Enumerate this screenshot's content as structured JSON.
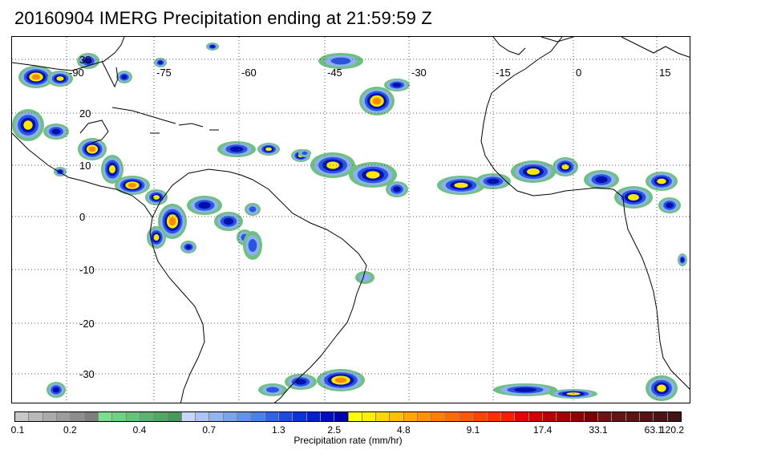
{
  "title": "20160904 IMERG Precipitation ending at 21:59:59 Z",
  "map": {
    "lon_labels": [
      "-90",
      "-75",
      "-60",
      "-45",
      "-30",
      "-15",
      "0",
      "15"
    ],
    "lat_labels": [
      "30",
      "20",
      "10",
      "0",
      "-10",
      "-20",
      "-30"
    ],
    "grid": "dotted",
    "coastline_color": "#000000"
  },
  "colorbar": {
    "label": "Precipitation rate (mm/hr)",
    "tick_labels": [
      "0.1",
      "0.2",
      "0.4",
      "0.7",
      "1.3",
      "2.5",
      "4.8",
      "9.1",
      "17.4",
      "33.1",
      "63.1",
      "120.2"
    ],
    "colors": [
      "#c8c8c8",
      "#b9b9b9",
      "#aaaaaa",
      "#9c9c9c",
      "#8d8d8d",
      "#7e7e7e",
      "#78e08c",
      "#6ed282",
      "#64c478",
      "#5ab66e",
      "#50a864",
      "#489a5c",
      "#c8d4f8",
      "#aec4f4",
      "#94b4f0",
      "#7aa4ec",
      "#6094e8",
      "#4884e4",
      "#3064e0",
      "#1e4cd8",
      "#0c34d0",
      "#0020c8",
      "#0010b8",
      "#0000a8",
      "#ffff00",
      "#fff000",
      "#ffd800",
      "#ffc000",
      "#ffa800",
      "#ff9400",
      "#ff8000",
      "#ff6c00",
      "#ff5800",
      "#ff4400",
      "#ff3000",
      "#ff1c00",
      "#e80000",
      "#d00000",
      "#b80000",
      "#a40000",
      "#900000",
      "#7c0000",
      "#6c1414",
      "#641414",
      "#5c1414",
      "#541414",
      "#4c1414",
      "#441414"
    ]
  },
  "precip_palette": {
    "light_green": "#6ec080",
    "light_blue": "#8fb0ee",
    "blue": "#2a55e0",
    "dark_blue": "#0010b0",
    "yellow": "#ffe800",
    "orange": "#ff8c00",
    "red": "#e81c00"
  }
}
